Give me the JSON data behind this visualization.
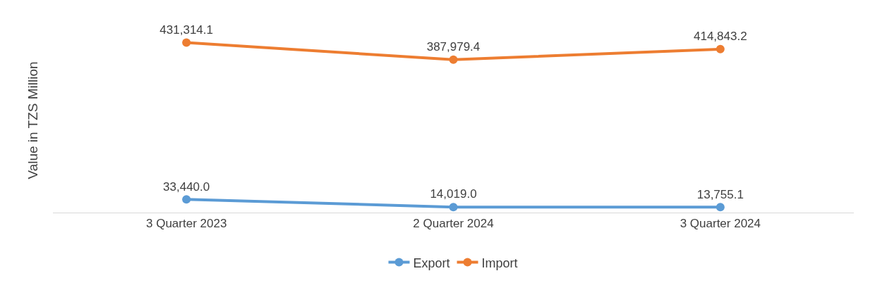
{
  "chart_data": {
    "type": "line",
    "ylabel": "Value in TZS Million",
    "categories": [
      "3 Quarter 2023",
      "2 Quarter 2024",
      "3 Quarter 2024"
    ],
    "series": [
      {
        "name": "Export",
        "color": "#5b9bd5",
        "values": [
          33440.0,
          14019.0,
          13755.1
        ],
        "value_labels": [
          "33,440.0",
          "14,019.0",
          "13,755.1"
        ]
      },
      {
        "name": "Import",
        "color": "#ed7d31",
        "values": [
          431314.1,
          387979.4,
          414843.2
        ],
        "value_labels": [
          "431,314.1",
          "387,979.4",
          "414,843.2"
        ]
      }
    ],
    "marker": "circle",
    "legend": "bottom",
    "tick_labels": "x"
  }
}
